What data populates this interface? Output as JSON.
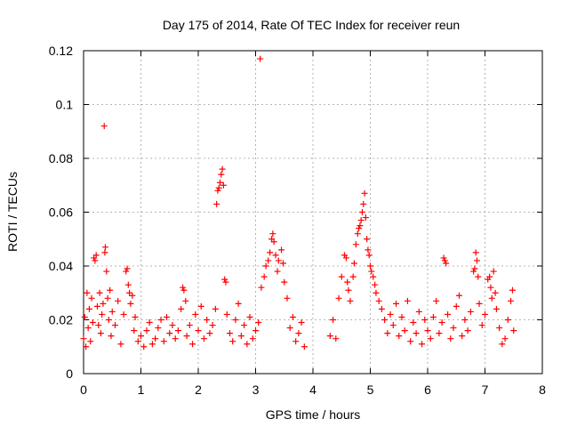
{
  "chart_data": {
    "type": "scatter",
    "title": "Day 175 of 2014, Rate Of TEC Index for receiver reun",
    "xlabel": "GPS time / hours",
    "ylabel": "ROTI / TECUs",
    "xlim": [
      0,
      8
    ],
    "ylim": [
      0,
      0.12
    ],
    "x_ticks": [
      0,
      1,
      2,
      3,
      4,
      5,
      6,
      7,
      8
    ],
    "x_tick_labels": [
      "0",
      "1",
      "2",
      "3",
      "4",
      "5",
      "6",
      "7",
      "8"
    ],
    "y_ticks": [
      0,
      0.02,
      0.04,
      0.06,
      0.08,
      0.1,
      0.12
    ],
    "y_tick_labels": [
      "0",
      "0.02",
      "0.04",
      "0.06",
      "0.08",
      "0.1",
      "0.12"
    ],
    "grid": true,
    "marker": "+",
    "color": "#ff0000",
    "series": [
      {
        "name": "ROTI",
        "points": [
          [
            0.0,
            0.013
          ],
          [
            0.02,
            0.021
          ],
          [
            0.04,
            0.01
          ],
          [
            0.06,
            0.03
          ],
          [
            0.08,
            0.017
          ],
          [
            0.1,
            0.024
          ],
          [
            0.12,
            0.012
          ],
          [
            0.14,
            0.028
          ],
          [
            0.16,
            0.019
          ],
          [
            0.18,
            0.043
          ],
          [
            0.2,
            0.042
          ],
          [
            0.22,
            0.044
          ],
          [
            0.24,
            0.025
          ],
          [
            0.26,
            0.018
          ],
          [
            0.28,
            0.03
          ],
          [
            0.3,
            0.015
          ],
          [
            0.32,
            0.022
          ],
          [
            0.34,
            0.026
          ],
          [
            0.36,
            0.092
          ],
          [
            0.37,
            0.045
          ],
          [
            0.38,
            0.047
          ],
          [
            0.4,
            0.038
          ],
          [
            0.42,
            0.028
          ],
          [
            0.44,
            0.02
          ],
          [
            0.46,
            0.031
          ],
          [
            0.48,
            0.014
          ],
          [
            0.5,
            0.023
          ],
          [
            0.55,
            0.018
          ],
          [
            0.6,
            0.027
          ],
          [
            0.65,
            0.011
          ],
          [
            0.7,
            0.022
          ],
          [
            0.74,
            0.038
          ],
          [
            0.76,
            0.039
          ],
          [
            0.78,
            0.033
          ],
          [
            0.8,
            0.03
          ],
          [
            0.82,
            0.026
          ],
          [
            0.85,
            0.029
          ],
          [
            0.88,
            0.016
          ],
          [
            0.9,
            0.021
          ],
          [
            0.95,
            0.012
          ],
          [
            1.0,
            0.014
          ],
          [
            1.05,
            0.01
          ],
          [
            1.1,
            0.016
          ],
          [
            1.15,
            0.019
          ],
          [
            1.2,
            0.011
          ],
          [
            1.25,
            0.013
          ],
          [
            1.3,
            0.017
          ],
          [
            1.35,
            0.02
          ],
          [
            1.4,
            0.012
          ],
          [
            1.45,
            0.021
          ],
          [
            1.5,
            0.015
          ],
          [
            1.55,
            0.018
          ],
          [
            1.6,
            0.013
          ],
          [
            1.65,
            0.016
          ],
          [
            1.7,
            0.024
          ],
          [
            1.73,
            0.032
          ],
          [
            1.75,
            0.031
          ],
          [
            1.78,
            0.027
          ],
          [
            1.8,
            0.014
          ],
          [
            1.85,
            0.018
          ],
          [
            1.9,
            0.011
          ],
          [
            1.95,
            0.022
          ],
          [
            2.0,
            0.016
          ],
          [
            2.05,
            0.025
          ],
          [
            2.1,
            0.013
          ],
          [
            2.15,
            0.02
          ],
          [
            2.2,
            0.015
          ],
          [
            2.25,
            0.018
          ],
          [
            2.3,
            0.024
          ],
          [
            2.32,
            0.063
          ],
          [
            2.34,
            0.068
          ],
          [
            2.36,
            0.069
          ],
          [
            2.38,
            0.071
          ],
          [
            2.4,
            0.074
          ],
          [
            2.42,
            0.076
          ],
          [
            2.44,
            0.07
          ],
          [
            2.46,
            0.035
          ],
          [
            2.48,
            0.034
          ],
          [
            2.5,
            0.022
          ],
          [
            2.55,
            0.015
          ],
          [
            2.6,
            0.012
          ],
          [
            2.65,
            0.02
          ],
          [
            2.7,
            0.026
          ],
          [
            2.75,
            0.014
          ],
          [
            2.8,
            0.018
          ],
          [
            2.85,
            0.011
          ],
          [
            2.9,
            0.021
          ],
          [
            2.95,
            0.013
          ],
          [
            3.0,
            0.016
          ],
          [
            3.05,
            0.019
          ],
          [
            3.08,
            0.117
          ],
          [
            3.1,
            0.032
          ],
          [
            3.15,
            0.036
          ],
          [
            3.18,
            0.04
          ],
          [
            3.22,
            0.042
          ],
          [
            3.25,
            0.045
          ],
          [
            3.28,
            0.05
          ],
          [
            3.3,
            0.052
          ],
          [
            3.32,
            0.049
          ],
          [
            3.35,
            0.044
          ],
          [
            3.38,
            0.038
          ],
          [
            3.4,
            0.042
          ],
          [
            3.45,
            0.046
          ],
          [
            3.48,
            0.041
          ],
          [
            3.5,
            0.034
          ],
          [
            3.55,
            0.028
          ],
          [
            3.6,
            0.017
          ],
          [
            3.65,
            0.021
          ],
          [
            3.7,
            0.012
          ],
          [
            3.75,
            0.015
          ],
          [
            3.8,
            0.019
          ],
          [
            3.85,
            0.01
          ],
          [
            4.3,
            0.014
          ],
          [
            4.35,
            0.02
          ],
          [
            4.4,
            0.013
          ],
          [
            4.45,
            0.028
          ],
          [
            4.5,
            0.036
          ],
          [
            4.55,
            0.044
          ],
          [
            4.58,
            0.043
          ],
          [
            4.6,
            0.034
          ],
          [
            4.62,
            0.031
          ],
          [
            4.65,
            0.027
          ],
          [
            4.7,
            0.036
          ],
          [
            4.72,
            0.041
          ],
          [
            4.75,
            0.048
          ],
          [
            4.78,
            0.052
          ],
          [
            4.8,
            0.054
          ],
          [
            4.82,
            0.055
          ],
          [
            4.84,
            0.057
          ],
          [
            4.86,
            0.06
          ],
          [
            4.88,
            0.063
          ],
          [
            4.9,
            0.067
          ],
          [
            4.92,
            0.058
          ],
          [
            4.94,
            0.05
          ],
          [
            4.96,
            0.046
          ],
          [
            4.98,
            0.044
          ],
          [
            5.0,
            0.04
          ],
          [
            5.02,
            0.038
          ],
          [
            5.05,
            0.036
          ],
          [
            5.08,
            0.033
          ],
          [
            5.1,
            0.03
          ],
          [
            5.15,
            0.027
          ],
          [
            5.2,
            0.024
          ],
          [
            5.25,
            0.02
          ],
          [
            5.3,
            0.015
          ],
          [
            5.35,
            0.022
          ],
          [
            5.4,
            0.018
          ],
          [
            5.45,
            0.026
          ],
          [
            5.5,
            0.014
          ],
          [
            5.55,
            0.021
          ],
          [
            5.6,
            0.016
          ],
          [
            5.65,
            0.027
          ],
          [
            5.7,
            0.012
          ],
          [
            5.75,
            0.019
          ],
          [
            5.8,
            0.015
          ],
          [
            5.85,
            0.023
          ],
          [
            5.9,
            0.011
          ],
          [
            5.95,
            0.02
          ],
          [
            6.0,
            0.016
          ],
          [
            6.05,
            0.013
          ],
          [
            6.1,
            0.021
          ],
          [
            6.15,
            0.027
          ],
          [
            6.2,
            0.015
          ],
          [
            6.25,
            0.019
          ],
          [
            6.28,
            0.043
          ],
          [
            6.3,
            0.042
          ],
          [
            6.32,
            0.041
          ],
          [
            6.35,
            0.022
          ],
          [
            6.4,
            0.013
          ],
          [
            6.45,
            0.017
          ],
          [
            6.5,
            0.025
          ],
          [
            6.55,
            0.029
          ],
          [
            6.6,
            0.014
          ],
          [
            6.65,
            0.02
          ],
          [
            6.7,
            0.016
          ],
          [
            6.75,
            0.023
          ],
          [
            6.8,
            0.038
          ],
          [
            6.82,
            0.039
          ],
          [
            6.84,
            0.045
          ],
          [
            6.86,
            0.042
          ],
          [
            6.88,
            0.036
          ],
          [
            6.9,
            0.026
          ],
          [
            6.95,
            0.018
          ],
          [
            7.0,
            0.022
          ],
          [
            7.05,
            0.035
          ],
          [
            7.08,
            0.036
          ],
          [
            7.1,
            0.032
          ],
          [
            7.12,
            0.028
          ],
          [
            7.15,
            0.038
          ],
          [
            7.18,
            0.03
          ],
          [
            7.2,
            0.024
          ],
          [
            7.25,
            0.017
          ],
          [
            7.3,
            0.011
          ],
          [
            7.35,
            0.013
          ],
          [
            7.4,
            0.02
          ],
          [
            7.45,
            0.027
          ],
          [
            7.48,
            0.031
          ],
          [
            7.5,
            0.016
          ]
        ]
      }
    ]
  }
}
